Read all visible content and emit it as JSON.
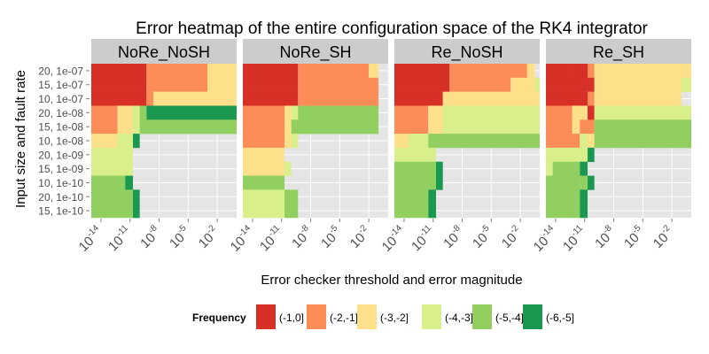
{
  "chart_data": {
    "type": "heatmap",
    "title": "Error heatmap of the entire configuration space of the RK4 integrator",
    "xlabel": "Error checker threshold and error magnitude",
    "ylabel": "Input size and fault rate",
    "x_scale": "log10",
    "xlim": [
      1e-15,
      1
    ],
    "x_ticks": [
      {
        "base": "10",
        "exp": "-14"
      },
      {
        "base": "10",
        "exp": "-11"
      },
      {
        "base": "10",
        "exp": "-8"
      },
      {
        "base": "10",
        "exp": "-5"
      },
      {
        "base": "10",
        "exp": "-2"
      }
    ],
    "x_tick_values": [
      1e-14,
      1e-11,
      1e-08,
      1e-05,
      0.01
    ],
    "y_categories": [
      "20, 1e-07",
      "15, 1e-07",
      "10, 1e-07",
      "20, 1e-08",
      "15, 1e-08",
      "10, 1e-08",
      "20, 1e-09",
      "15, 1e-09",
      "10, 1e-10",
      "20, 1e-10",
      "15, 1e-10"
    ],
    "legend": {
      "title": "Frequency",
      "placement": "bottom",
      "items": [
        {
          "label": "(-1,0]",
          "color": "#d73027"
        },
        {
          "label": "(-2,-1]",
          "color": "#fc8d59"
        },
        {
          "label": "(-3,-2]",
          "color": "#fee08b"
        },
        {
          "label": "(-4,-3]",
          "color": "#d9ef8b"
        },
        {
          "label": "(-5,-4]",
          "color": "#91cf60"
        },
        {
          "label": "(-6,-5]",
          "color": "#1a9850"
        }
      ]
    },
    "panels": [
      {
        "name": "NoRe_NoSH",
        "rows": [
          [
            [
              -15,
              -9.3,
              0
            ],
            [
              -9.3,
              -3,
              1
            ],
            [
              -3,
              0,
              2
            ]
          ],
          [
            [
              -15,
              -9.3,
              0
            ],
            [
              -9.3,
              -3,
              1
            ],
            [
              -3,
              0,
              2
            ]
          ],
          [
            [
              -15,
              -9.3,
              0
            ],
            [
              -9.3,
              -8.6,
              1
            ],
            [
              -8.6,
              0,
              2
            ]
          ],
          [
            [
              -15,
              -12.3,
              1
            ],
            [
              -12.3,
              -10.7,
              2
            ],
            [
              -10.7,
              -10,
              3
            ],
            [
              -10,
              -9.3,
              4
            ],
            [
              -9.3,
              0,
              5
            ]
          ],
          [
            [
              -15,
              -12.3,
              1
            ],
            [
              -12.3,
              -10.7,
              2
            ],
            [
              -10.7,
              -10,
              3
            ],
            [
              -10,
              0,
              4
            ]
          ],
          [
            [
              -15,
              -12.3,
              2
            ],
            [
              -12.3,
              -10.7,
              3
            ],
            [
              -10.7,
              -10,
              5
            ]
          ],
          [
            [
              -15,
              -10.7,
              3
            ]
          ],
          [
            [
              -15,
              -10.7,
              3
            ]
          ],
          [
            [
              -15,
              -11.5,
              4
            ],
            [
              -11.5,
              -10.7,
              5
            ]
          ],
          [
            [
              -15,
              -10.7,
              4
            ],
            [
              -10.7,
              -10,
              5
            ]
          ],
          [
            [
              -15,
              -10.7,
              4
            ],
            [
              -10.7,
              -10,
              5
            ]
          ]
        ]
      },
      {
        "name": "NoRe_SH",
        "rows": [
          [
            [
              -15,
              -9.3,
              0
            ],
            [
              -9.3,
              -2,
              1
            ],
            [
              -2,
              -1,
              2
            ]
          ],
          [
            [
              -15,
              -9.3,
              0
            ],
            [
              -9.3,
              -1,
              1
            ]
          ],
          [
            [
              -15,
              -9.3,
              0
            ],
            [
              -9.3,
              -1,
              1
            ]
          ],
          [
            [
              -15,
              -10.7,
              1
            ],
            [
              -10.7,
              -10,
              2
            ],
            [
              -10,
              -9.3,
              3
            ],
            [
              -9.3,
              -1,
              4
            ]
          ],
          [
            [
              -15,
              -10.7,
              1
            ],
            [
              -10.7,
              -10,
              2
            ],
            [
              -10,
              -1,
              4
            ]
          ],
          [
            [
              -15,
              -10.7,
              1
            ],
            [
              -10.7,
              -10,
              2
            ],
            [
              -10,
              -9.3,
              3
            ]
          ],
          [
            [
              -15,
              -10.7,
              2
            ]
          ],
          [
            [
              -15,
              -10.7,
              2
            ],
            [
              -10.7,
              -10,
              3
            ]
          ],
          [
            [
              -15,
              -10.7,
              4
            ]
          ],
          [
            [
              -15,
              -10.7,
              3
            ],
            [
              -10.7,
              -9.3,
              4
            ]
          ],
          [
            [
              -15,
              -10.7,
              3
            ],
            [
              -10.7,
              -9.3,
              4
            ]
          ]
        ]
      },
      {
        "name": "Re_NoSH",
        "rows": [
          [
            [
              -15,
              -9.3,
              0
            ],
            [
              -9.3,
              -1.3,
              1
            ],
            [
              -1.3,
              -0.5,
              2
            ]
          ],
          [
            [
              -15,
              -9.3,
              0
            ],
            [
              -9.3,
              -3,
              1
            ],
            [
              -3,
              -0.5,
              2
            ],
            [
              -0.5,
              0,
              3
            ]
          ],
          [
            [
              -15,
              -10,
              0
            ],
            [
              -10,
              -9.3,
              2
            ],
            [
              -9.3,
              0,
              2
            ]
          ],
          [
            [
              -15,
              -11.5,
              1
            ],
            [
              -11.5,
              -10,
              2
            ],
            [
              -10,
              0,
              3
            ]
          ],
          [
            [
              -15,
              -11.5,
              1
            ],
            [
              -11.5,
              -10,
              2
            ],
            [
              -10,
              0,
              3
            ]
          ],
          [
            [
              -15,
              -13.5,
              2
            ],
            [
              -13.5,
              -11.5,
              3
            ],
            [
              -11.5,
              0,
              4
            ]
          ],
          [
            [
              -15,
              -10.7,
              3
            ]
          ],
          [
            [
              -15,
              -10.7,
              4
            ],
            [
              -10.7,
              -10,
              5
            ]
          ],
          [
            [
              -15,
              -10.7,
              4
            ],
            [
              -10.7,
              -10,
              5
            ]
          ],
          [
            [
              -15,
              -11.5,
              4
            ],
            [
              -11.5,
              -10.7,
              5
            ]
          ],
          [
            [
              -15,
              -11.5,
              4
            ],
            [
              -11.5,
              -10.7,
              5
            ]
          ]
        ]
      },
      {
        "name": "Re_SH",
        "rows": [
          [
            [
              -15,
              -12.3,
              0
            ],
            [
              -12.3,
              -10.7,
              0
            ],
            [
              -10.7,
              -10,
              1
            ],
            [
              -10,
              0,
              2
            ]
          ],
          [
            [
              -15,
              -10.7,
              0
            ],
            [
              -10.7,
              -10,
              0
            ],
            [
              -10,
              -1,
              2
            ],
            [
              -1,
              0,
              3
            ]
          ],
          [
            [
              -15,
              -10.7,
              0
            ],
            [
              -10.7,
              -10,
              1
            ],
            [
              -10,
              -1,
              2
            ]
          ],
          [
            [
              -15,
              -12.3,
              1
            ],
            [
              -12.3,
              -10.7,
              2
            ],
            [
              -10.7,
              -10,
              0
            ],
            [
              -10,
              0,
              3
            ]
          ],
          [
            [
              -15,
              -12.3,
              1
            ],
            [
              -12.3,
              -11.5,
              2
            ],
            [
              -11.5,
              -10,
              1
            ],
            [
              -10,
              0,
              4
            ]
          ],
          [
            [
              -15,
              -11.5,
              1
            ],
            [
              -11.5,
              -10.7,
              3
            ],
            [
              -10.7,
              -10,
              2
            ],
            [
              -10,
              0,
              4
            ]
          ],
          [
            [
              -15,
              -10.7,
              3
            ],
            [
              -10.7,
              -10,
              5
            ]
          ],
          [
            [
              -15,
              -14.3,
              3
            ],
            [
              -14.3,
              -11.5,
              4
            ],
            [
              -11.5,
              -10.7,
              5
            ]
          ],
          [
            [
              -15,
              -11.5,
              4
            ],
            [
              -11.5,
              -10.7,
              4
            ],
            [
              -10.7,
              -10,
              5
            ]
          ],
          [
            [
              -15,
              -11.5,
              4
            ],
            [
              -11.5,
              -10.7,
              5
            ]
          ],
          [
            [
              -15,
              -11.5,
              4
            ],
            [
              -11.5,
              -10.7,
              5
            ]
          ]
        ]
      }
    ]
  }
}
